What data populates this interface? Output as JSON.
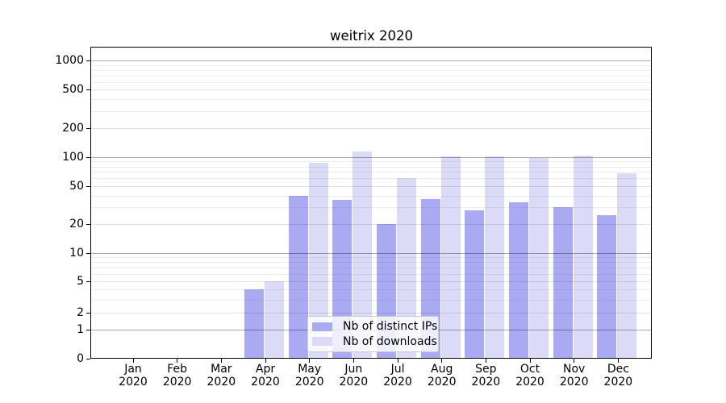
{
  "title": "weitrix 2020",
  "legend": {
    "items": [
      {
        "label": "Nb of distinct IPs",
        "series": "ips"
      },
      {
        "label": "Nb of downloads",
        "series": "downloads"
      }
    ]
  },
  "colors": {
    "ips": "#aaaaf3",
    "downloads": "#dbdbf8",
    "grid_decade": "rgba(0,0,0,0.34)",
    "grid_labeled": "rgba(0,0,0,0.12)",
    "grid_minor": "rgba(0,0,0,0.07)",
    "legend_border": "#cccccc",
    "axis": "#000000"
  },
  "x_axis": {
    "months": [
      "Jan",
      "Feb",
      "Mar",
      "Apr",
      "May",
      "Jun",
      "Jul",
      "Aug",
      "Sep",
      "Oct",
      "Nov",
      "Dec"
    ],
    "year": "2020"
  },
  "y_axis": {
    "tick_labels": [
      "1000",
      "500",
      "200",
      "100",
      "50",
      "20",
      "10",
      "5",
      "2",
      "1",
      "0"
    ]
  },
  "chart_data": {
    "type": "bar",
    "title": "weitrix 2020",
    "categories": [
      "Jan 2020",
      "Feb 2020",
      "Mar 2020",
      "Apr 2020",
      "May 2020",
      "Jun 2020",
      "Jul 2020",
      "Aug 2020",
      "Sep 2020",
      "Oct 2020",
      "Nov 2020",
      "Dec 2020"
    ],
    "series": [
      {
        "name": "Nb of distinct IPs",
        "values": [
          0,
          0,
          0,
          4,
          40,
          36,
          20,
          37,
          28,
          34,
          30,
          25
        ]
      },
      {
        "name": "Nb of downloads",
        "values": [
          0,
          0,
          0,
          5,
          88,
          114,
          60,
          102,
          101,
          98,
          103,
          68
        ]
      }
    ],
    "xlabel": "",
    "ylabel": "",
    "yscale": "asinh (log-like; linear near zero)",
    "yticks": [
      0,
      1,
      2,
      5,
      10,
      20,
      50,
      100,
      200,
      500,
      1000
    ],
    "ylim": [
      0,
      1300
    ],
    "grid": true,
    "legend_position": "inside lower-center"
  }
}
